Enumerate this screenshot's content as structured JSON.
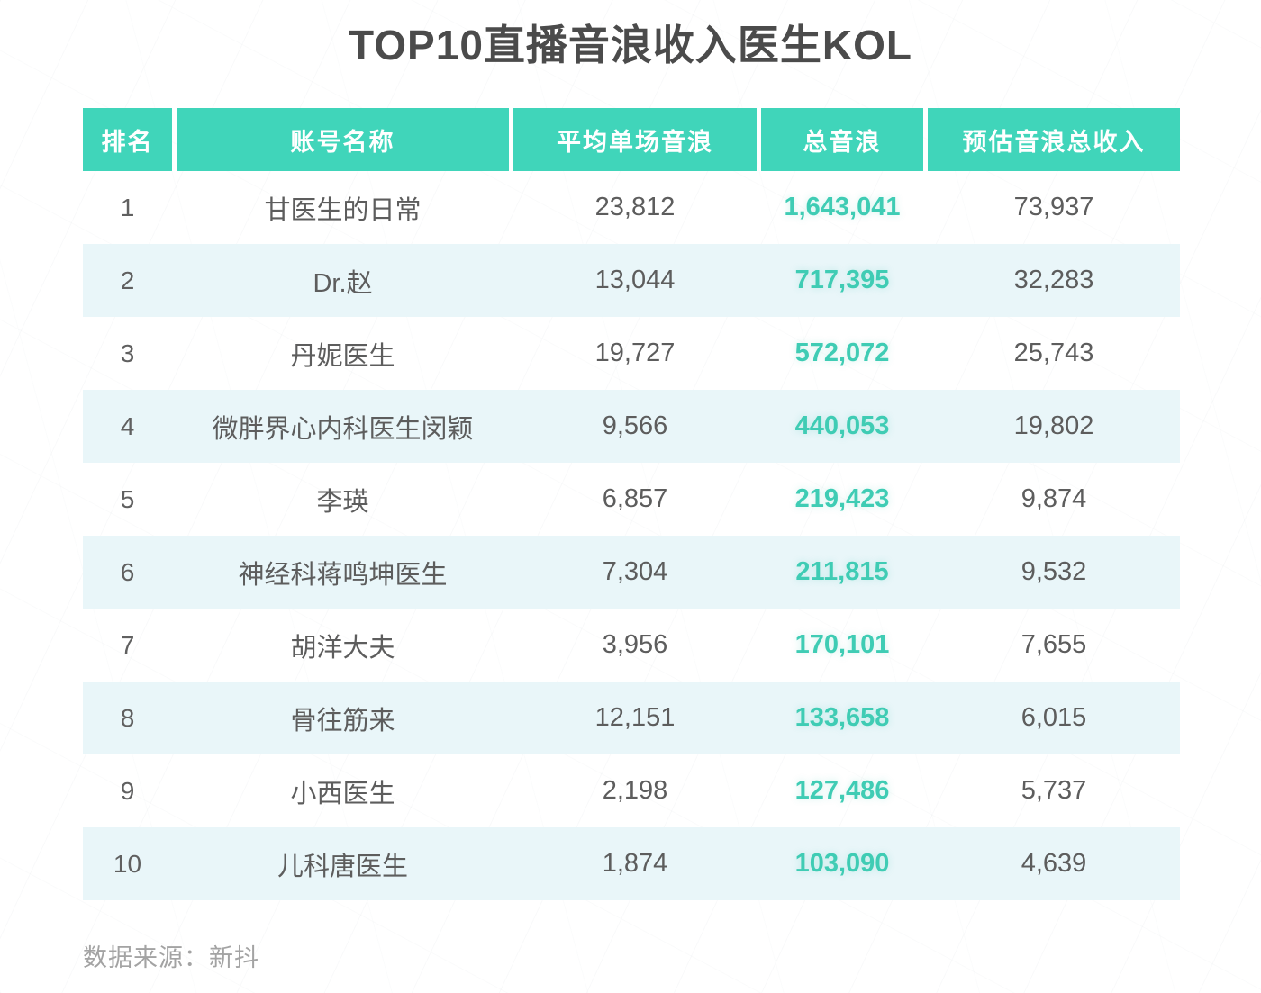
{
  "title": "TOP10直播音浪收入医生KOL",
  "table": {
    "columns": [
      "排名",
      "账号名称",
      "平均单场音浪",
      "总音浪",
      "预估音浪总收入"
    ],
    "rows": [
      {
        "rank": "1",
        "name": "甘医生的日常",
        "avg": "23,812",
        "total": "1,643,041",
        "income": "73,937"
      },
      {
        "rank": "2",
        "name": "Dr.赵",
        "avg": "13,044",
        "total": "717,395",
        "income": "32,283"
      },
      {
        "rank": "3",
        "name": "丹妮医生",
        "avg": "19,727",
        "total": "572,072",
        "income": "25,743"
      },
      {
        "rank": "4",
        "name": "微胖界心内科医生闵颖",
        "avg": "9,566",
        "total": "440,053",
        "income": "19,802"
      },
      {
        "rank": "5",
        "name": "李瑛",
        "avg": "6,857",
        "total": "219,423",
        "income": "9,874"
      },
      {
        "rank": "6",
        "name": "神经科蒋鸣坤医生",
        "avg": "7,304",
        "total": "211,815",
        "income": "9,532"
      },
      {
        "rank": "7",
        "name": "胡洋大夫",
        "avg": "3,956",
        "total": "170,101",
        "income": "7,655"
      },
      {
        "rank": "8",
        "name": "骨往筋来",
        "avg": "12,151",
        "total": "133,658",
        "income": "6,015"
      },
      {
        "rank": "9",
        "name": "小西医生",
        "avg": "2,198",
        "total": "127,486",
        "income": "5,737"
      },
      {
        "rank": "10",
        "name": "儿科唐医生",
        "avg": "1,874",
        "total": "103,090",
        "income": "4,639"
      }
    ]
  },
  "footer": {
    "source_text": "数据来源：新抖"
  },
  "colors": {
    "header_bg": "#40d5ba",
    "accent_text": "#3fccb4",
    "row_alt_bg": "#e9f6f9",
    "title_text": "#4b4b4b",
    "body_text": "#5d5d5d",
    "source_text": "#a3a3a3"
  },
  "chart_data": {
    "type": "table",
    "title": "TOP10直播音浪收入医生KOL",
    "columns": [
      "排名",
      "账号名称",
      "平均单场音浪",
      "总音浪",
      "预估音浪总收入"
    ],
    "rows": [
      [
        1,
        "甘医生的日常",
        23812,
        1643041,
        73937
      ],
      [
        2,
        "Dr.赵",
        13044,
        717395,
        32283
      ],
      [
        3,
        "丹妮医生",
        19727,
        572072,
        25743
      ],
      [
        4,
        "微胖界心内科医生闵颖",
        9566,
        440053,
        19802
      ],
      [
        5,
        "李瑛",
        6857,
        219423,
        9874
      ],
      [
        6,
        "神经科蒋鸣坤医生",
        7304,
        211815,
        9532
      ],
      [
        7,
        "胡洋大夫",
        3956,
        170101,
        7655
      ],
      [
        8,
        "骨往筋来",
        12151,
        133658,
        6015
      ],
      [
        9,
        "小西医生",
        2198,
        127486,
        5737
      ],
      [
        10,
        "儿科唐医生",
        1874,
        103090,
        4639
      ]
    ],
    "source": "数据来源：新抖",
    "layout_hints": {
      "highlight_column": "总音浪",
      "highlight_color": "#3fccb4",
      "striped_rows": "even",
      "header_color": "#40d5ba"
    }
  }
}
